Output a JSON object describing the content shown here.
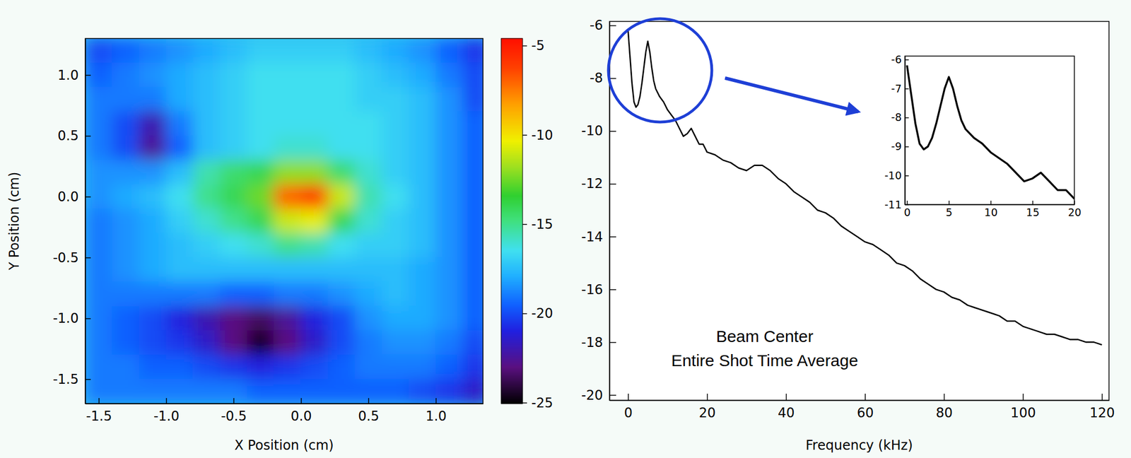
{
  "chart_data": [
    {
      "type": "heatmap",
      "x_label": "X Position (cm)",
      "y_label": "Y Position (cm)",
      "x": [
        -1.5,
        -1.3,
        -1.1,
        -0.9,
        -0.7,
        -0.5,
        -0.3,
        -0.1,
        0.1,
        0.3,
        0.5,
        0.7,
        0.9,
        1.1,
        1.3
      ],
      "y": [
        1.2,
        1.0,
        0.8,
        0.6,
        0.4,
        0.2,
        0.0,
        -0.2,
        -0.4,
        -0.6,
        -0.8,
        -1.0,
        -1.2,
        -1.4,
        -1.6
      ],
      "values": [
        [
          -20,
          -19.5,
          -19,
          -18.5,
          -18,
          -17.5,
          -17,
          -17,
          -17,
          -17,
          -17.5,
          -18,
          -18.5,
          -19.5,
          -20.5
        ],
        [
          -19.5,
          -19,
          -18.5,
          -18,
          -17.5,
          -17,
          -16.5,
          -16.5,
          -16.5,
          -16.5,
          -17,
          -17.5,
          -18,
          -19,
          -20
        ],
        [
          -19,
          -19,
          -19,
          -18,
          -17.5,
          -17,
          -16.5,
          -16.5,
          -16.5,
          -16.5,
          -17,
          -17,
          -17.5,
          -18.5,
          -20
        ],
        [
          -19,
          -20,
          -22,
          -19,
          -17.5,
          -17,
          -16.5,
          -16.5,
          -16.5,
          -16.5,
          -16.5,
          -17,
          -17.5,
          -18.5,
          -19.5
        ],
        [
          -19,
          -20,
          -22.5,
          -19.5,
          -17.5,
          -17,
          -16.5,
          -16,
          -16,
          -16.5,
          -16.5,
          -17,
          -17.5,
          -18.5,
          -19.5
        ],
        [
          -18.5,
          -18.5,
          -18.5,
          -17.5,
          -15.5,
          -14.5,
          -14,
          -12,
          -12,
          -14.5,
          -16,
          -17,
          -17.5,
          -18.5,
          -19.5
        ],
        [
          -18.5,
          -18,
          -17.5,
          -16.5,
          -15,
          -14,
          -12.5,
          -7,
          -6,
          -11,
          -15.5,
          -16.5,
          -17.5,
          -18.5,
          -19.5
        ],
        [
          -19,
          -18.5,
          -18,
          -17,
          -16,
          -15,
          -14,
          -11,
          -10.5,
          -14,
          -16,
          -17,
          -17.5,
          -18.5,
          -19.5
        ],
        [
          -19,
          -18.5,
          -18,
          -17.5,
          -17,
          -16.5,
          -16,
          -15,
          -15.5,
          -16.5,
          -17,
          -17,
          -17.5,
          -18.5,
          -19.5
        ],
        [
          -19,
          -18.5,
          -18,
          -17.5,
          -17.5,
          -17.5,
          -17.5,
          -17.5,
          -17.5,
          -17.5,
          -17.5,
          -17.5,
          -18,
          -18.5,
          -19.5
        ],
        [
          -19,
          -19,
          -19,
          -19,
          -19,
          -19.5,
          -19.5,
          -19,
          -19,
          -18.5,
          -18,
          -17.5,
          -18,
          -18.5,
          -19.5
        ],
        [
          -19,
          -19.5,
          -20,
          -21,
          -22,
          -23,
          -23.5,
          -22.5,
          -21,
          -20,
          -18.5,
          -18,
          -18,
          -18.5,
          -19.5
        ],
        [
          -19,
          -19.5,
          -20,
          -20.5,
          -21.5,
          -23,
          -24.5,
          -23,
          -21.5,
          -20,
          -19,
          -18.5,
          -18.5,
          -19,
          -20
        ],
        [
          -19,
          -19,
          -19.5,
          -19.5,
          -20,
          -20.5,
          -21,
          -20.5,
          -20,
          -19.5,
          -19,
          -19,
          -19,
          -19.5,
          -20.5
        ],
        [
          -19,
          -19,
          -19,
          -19,
          -19,
          -19,
          -19.5,
          -19.5,
          -19.5,
          -19.5,
          -19.5,
          -19.5,
          -20,
          -20.5,
          -21.5
        ]
      ],
      "xlim": [
        -1.6,
        1.35
      ],
      "ylim": [
        -1.7,
        1.3
      ],
      "xticks": [
        -1.5,
        {
          "value": -1,
          "label": "-1.0"
        },
        -0.5,
        {
          "value": 0,
          "label": "0.0"
        },
        0.5,
        {
          "value": 1,
          "label": "1.0"
        }
      ],
      "yticks": [
        {
          "value": 1,
          "label": "1.0"
        },
        0.5,
        {
          "value": 0,
          "label": "0.0"
        },
        -0.5,
        {
          "value": -1,
          "label": "-1.0"
        },
        -1.5
      ],
      "colorbar_range": [
        -25.05,
        -4.6
      ],
      "colorbar_ticks": [
        -5,
        -10,
        -15,
        -20,
        -25
      ]
    },
    {
      "type": "line",
      "x_label": "Frequency (kHz)",
      "annotations": [
        "Beam Center",
        "Entire Shot Time Average"
      ],
      "x": [
        0,
        0.5,
        1,
        1.5,
        2,
        2.5,
        3,
        3.5,
        4,
        4.5,
        5,
        5.5,
        6,
        6.5,
        7,
        8,
        9,
        10,
        11,
        12,
        13,
        14,
        15,
        16,
        17,
        18,
        19,
        20,
        22,
        24,
        26,
        28,
        30,
        32,
        34,
        36,
        38,
        40,
        42,
        44,
        46,
        48,
        50,
        52,
        54,
        56,
        58,
        60,
        62,
        64,
        66,
        68,
        70,
        72,
        74,
        76,
        78,
        80,
        82,
        84,
        86,
        88,
        90,
        92,
        94,
        96,
        98,
        100,
        102,
        104,
        106,
        108,
        110,
        112,
        114,
        116,
        118,
        120
      ],
      "values": [
        -6.2,
        -7.2,
        -8.2,
        -8.9,
        -9.1,
        -9,
        -8.7,
        -8.2,
        -7.6,
        -7,
        -6.6,
        -7,
        -7.6,
        -8.1,
        -8.4,
        -8.7,
        -8.9,
        -9.2,
        -9.4,
        -9.6,
        -9.9,
        -10.2,
        -10.1,
        -9.9,
        -10.2,
        -10.5,
        -10.5,
        -10.8,
        -10.9,
        -11.1,
        -11.2,
        -11.4,
        -11.5,
        -11.3,
        -11.3,
        -11.5,
        -11.8,
        -12,
        -12.3,
        -12.5,
        -12.7,
        -13,
        -13.1,
        -13.3,
        -13.6,
        -13.8,
        -14,
        -14.2,
        -14.3,
        -14.5,
        -14.7,
        -15,
        -15.1,
        -15.3,
        -15.6,
        -15.8,
        -16,
        -16.1,
        -16.3,
        -16.4,
        -16.6,
        -16.7,
        -16.8,
        -16.9,
        -17,
        -17.2,
        -17.2,
        -17.4,
        -17.5,
        -17.6,
        -17.7,
        -17.7,
        -17.8,
        -17.9,
        -17.9,
        -18,
        -18,
        -18.1
      ],
      "color": "#000000",
      "xlim": [
        -4.7,
        121.8
      ],
      "ylim": [
        -20.2,
        -5.85
      ],
      "xticks": [
        0,
        20,
        40,
        60,
        80,
        100,
        120
      ],
      "yticks": [
        -6,
        -8,
        -10,
        -12,
        -14,
        -16,
        -18,
        -20
      ]
    },
    {
      "type": "line",
      "x": [
        0,
        0.5,
        1,
        1.5,
        2,
        2.5,
        3,
        3.5,
        4,
        4.5,
        5,
        5.5,
        6,
        6.5,
        7,
        8,
        9,
        10,
        11,
        12,
        13,
        14,
        15,
        16,
        17,
        18,
        19,
        20
      ],
      "values": [
        -6.2,
        -7.2,
        -8.2,
        -8.9,
        -9.1,
        -9,
        -8.7,
        -8.2,
        -7.6,
        -7,
        -6.6,
        -7,
        -7.6,
        -8.1,
        -8.4,
        -8.7,
        -8.9,
        -9.2,
        -9.4,
        -9.6,
        -9.9,
        -10.2,
        -10.1,
        -9.9,
        -10.2,
        -10.5,
        -10.5,
        -10.8
      ],
      "color": "#000000",
      "xlim": [
        -0.25,
        20
      ],
      "ylim": [
        -11,
        -5.88
      ],
      "xticks": [
        0,
        5,
        10,
        15,
        20
      ],
      "yticks": [
        -6,
        -7,
        -8,
        -9,
        -10,
        -11
      ]
    }
  ]
}
